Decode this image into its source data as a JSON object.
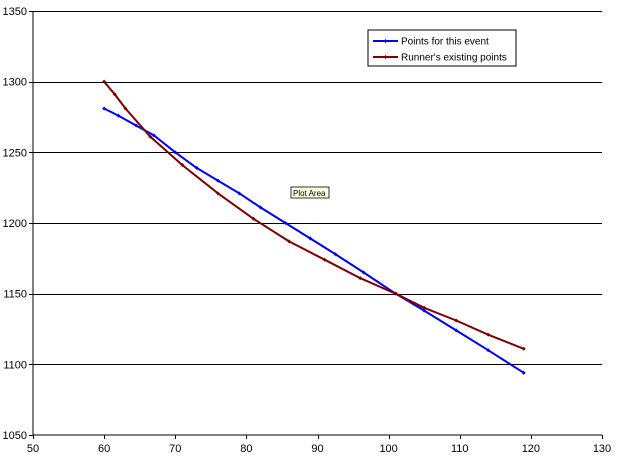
{
  "chart_data": {
    "type": "line",
    "title": "",
    "xlabel": "",
    "ylabel": "",
    "xlim": [
      50,
      130
    ],
    "ylim": [
      1050,
      1350
    ],
    "x_ticks": [
      50,
      60,
      70,
      80,
      90,
      100,
      110,
      120,
      130
    ],
    "y_ticks": [
      1050,
      1100,
      1150,
      1200,
      1250,
      1300,
      1350
    ],
    "grid": "horizontal",
    "legend_position": "top-right",
    "tooltip": "Plot Area",
    "series": [
      {
        "name": "Points for this event",
        "color": "#0000ff",
        "marker": "diamond",
        "points": [
          [
            60,
            1281
          ],
          [
            62,
            1276
          ],
          [
            64.5,
            1269
          ],
          [
            67,
            1262
          ],
          [
            70,
            1250
          ],
          [
            73,
            1239
          ],
          [
            76,
            1230
          ],
          [
            79,
            1221
          ],
          [
            82,
            1211
          ],
          [
            85.5,
            1200
          ],
          [
            89,
            1189
          ],
          [
            92.5,
            1178
          ],
          [
            96.5,
            1165
          ],
          [
            101,
            1150
          ],
          [
            105,
            1138
          ],
          [
            109.5,
            1124
          ],
          [
            114,
            1110
          ],
          [
            119,
            1094
          ]
        ]
      },
      {
        "name": "Runner's existing points",
        "color": "#800000",
        "marker": "diamond",
        "points": [
          [
            60,
            1300
          ],
          [
            61.5,
            1291
          ],
          [
            63,
            1281
          ],
          [
            66.5,
            1261
          ],
          [
            71,
            1241
          ],
          [
            76,
            1221
          ],
          [
            81,
            1203
          ],
          [
            86,
            1187
          ],
          [
            91,
            1174
          ],
          [
            96,
            1161
          ],
          [
            101,
            1150
          ],
          [
            105,
            1140
          ],
          [
            109.5,
            1131
          ],
          [
            114,
            1121
          ],
          [
            119,
            1111
          ]
        ]
      }
    ]
  }
}
